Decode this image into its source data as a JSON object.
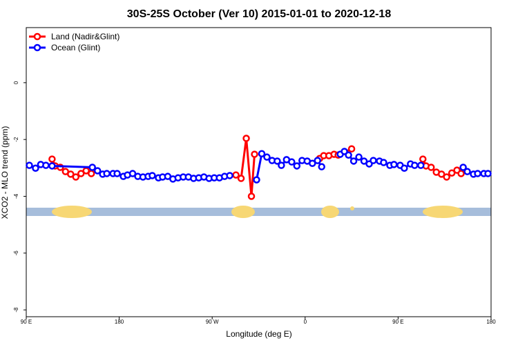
{
  "chart_data": {
    "type": "line",
    "title": "30S-25S October (Ver 10)   2015-01-01 to 2020-12-18",
    "x_label": "Longitude (deg E)",
    "y_label": "XCO2 - MLO trend (ppm)",
    "xlim": [
      90,
      540
    ],
    "xticks": [
      {
        "value": 90,
        "label": "90 E"
      },
      180,
      {
        "value": 270,
        "label": "90 W"
      },
      {
        "value": 360,
        "label": "0"
      },
      {
        "value": 450,
        "label": "90 E"
      },
      {
        "value": 540,
        "label": "180"
      }
    ],
    "ylim": [
      -8.24,
      1.94
    ],
    "yticks": [
      0,
      -2,
      -4,
      -6,
      -8
    ],
    "legend": "top-left",
    "series": [
      {
        "name": "Land (Nadir&Glint)",
        "color": "#ff0000",
        "x": [
          115,
          118,
          123,
          128,
          133,
          138,
          143,
          148,
          153,
          null,
          293,
          298,
          303,
          308,
          311,
          null,
          374,
          378,
          383,
          388,
          392,
          405,
          null,
          474,
          477,
          482,
          487,
          492,
          497,
          502,
          507,
          511
        ],
        "values": [
          -2.69,
          -2.93,
          -2.98,
          -3.13,
          -3.22,
          -3.32,
          -3.2,
          -3.1,
          -3.2,
          null,
          -3.25,
          -3.37,
          -1.96,
          -4.0,
          -2.52,
          null,
          -2.67,
          -2.57,
          -2.57,
          -2.52,
          -2.55,
          -2.33,
          null,
          -2.69,
          -2.93,
          -2.98,
          -3.15,
          -3.22,
          -3.32,
          -3.18,
          -3.08,
          -3.2
        ]
      },
      {
        "name": "Ocean (Glint)",
        "color": "#0000ff",
        "x": [
          93,
          99,
          104,
          109,
          115,
          154,
          159,
          164,
          168,
          174,
          178,
          184,
          188,
          193,
          198,
          203,
          208,
          212,
          218,
          222,
          227,
          232,
          237,
          242,
          247,
          252,
          257,
          262,
          267,
          272,
          277,
          282,
          287,
          null,
          313,
          318,
          323,
          328,
          333,
          337,
          342,
          347,
          352,
          357,
          362,
          367,
          372,
          376,
          null,
          394,
          398,
          402,
          407,
          412,
          417,
          422,
          426,
          432,
          436,
          442,
          446,
          452,
          456,
          462,
          466,
          472,
          null,
          513,
          517,
          523,
          527,
          533,
          537
        ],
        "values": [
          -2.91,
          -3.01,
          -2.88,
          -2.91,
          -2.93,
          -2.98,
          -3.1,
          -3.22,
          -3.2,
          -3.2,
          -3.2,
          -3.3,
          -3.25,
          -3.2,
          -3.3,
          -3.32,
          -3.3,
          -3.27,
          -3.35,
          -3.32,
          -3.3,
          -3.39,
          -3.35,
          -3.32,
          -3.32,
          -3.37,
          -3.35,
          -3.32,
          -3.37,
          -3.35,
          -3.35,
          -3.3,
          -3.27,
          null,
          -3.42,
          -2.5,
          -2.62,
          -2.74,
          -2.76,
          -2.91,
          -2.71,
          -2.79,
          -2.93,
          -2.74,
          -2.76,
          -2.84,
          -2.74,
          -2.96,
          null,
          -2.52,
          -2.42,
          -2.55,
          -2.76,
          -2.62,
          -2.76,
          -2.86,
          -2.74,
          -2.76,
          -2.81,
          -2.91,
          -2.88,
          -2.91,
          -3.01,
          -2.86,
          -2.91,
          -2.91,
          null,
          -2.98,
          -3.13,
          -3.22,
          -3.2,
          -3.2,
          -3.2
        ]
      }
    ]
  }
}
